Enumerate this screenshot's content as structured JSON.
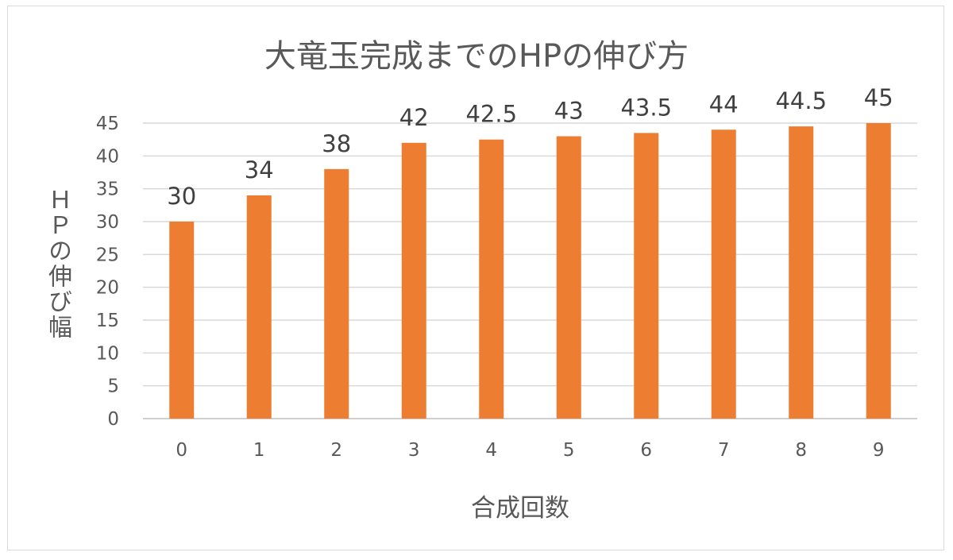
{
  "chart_data": {
    "type": "bar",
    "title": "大竜玉完成までのHPの伸び方",
    "xlabel": "合成回数",
    "ylabel": "ＨＰの伸び幅",
    "categories": [
      "0",
      "1",
      "2",
      "3",
      "4",
      "5",
      "6",
      "7",
      "8",
      "9"
    ],
    "series": [
      {
        "values": [
          30,
          34,
          38,
          42,
          42.5,
          43,
          43.5,
          44,
          44.5,
          45
        ],
        "color": "#ED7D31"
      }
    ],
    "ylim": [
      0,
      45
    ],
    "yticks": [
      0,
      5,
      10,
      15,
      20,
      25,
      30,
      35,
      40,
      45
    ],
    "grid": true,
    "legend": "none",
    "data_labels": true
  }
}
